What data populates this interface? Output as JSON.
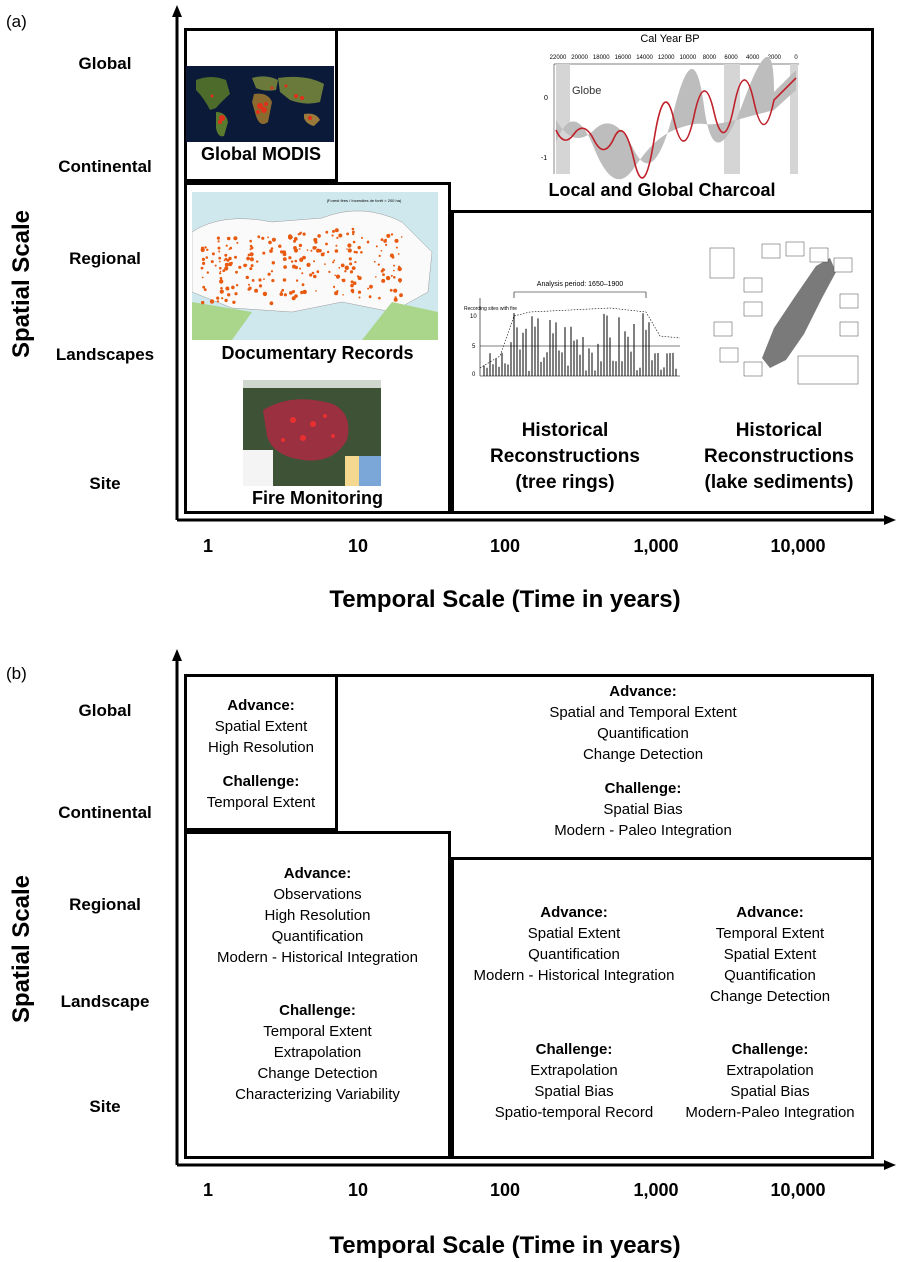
{
  "panel_a": {
    "label": "(a)",
    "y_axis_title": "Spatial Scale",
    "x_axis_title": "Temporal Scale  (Time in years)",
    "y_levels": [
      "Global",
      "Continental",
      "Regional",
      "Landscapes",
      "Site"
    ],
    "x_levels": [
      "1",
      "10",
      "100",
      "1,000",
      "10,000"
    ],
    "boxes": {
      "modis": "Global MODIS",
      "charcoal": "Local and Global Charcoal",
      "documentary": "Documentary Records",
      "monitoring": "Fire Monitoring",
      "tree_rings": [
        "Historical",
        "Reconstructions",
        "(tree rings)"
      ],
      "lake_sediments": [
        "Historical",
        "Reconstructions",
        "(lake sediments)"
      ]
    },
    "charcoal_chart": {
      "top_label": "Cal Year BP",
      "ticks": [
        "22000",
        "20000",
        "18000",
        "16000",
        "14000",
        "12000",
        "10000",
        "8000",
        "6000",
        "4000",
        "2000",
        "0"
      ],
      "y_ticks": [
        "0",
        "-1"
      ],
      "series": "Globe"
    },
    "tree_ring_chart": {
      "title": "Analysis period: 1650–1900",
      "ylabel": "Recording sites with fire",
      "y_ticks": [
        "10",
        "5",
        "0"
      ]
    },
    "doc_map_title": "(Forest fires / Incendies de forêt > 200 ha)"
  },
  "panel_b": {
    "label": "(b)",
    "y_axis_title": "Spatial Scale",
    "x_axis_title": "Temporal Scale  (Time in years)",
    "y_levels": [
      "Global",
      "Continental",
      "Regional",
      "Landscape",
      "Site"
    ],
    "x_levels": [
      "1",
      "10",
      "100",
      "1,000",
      "10,000"
    ],
    "box1": {
      "advance_label": "Advance:",
      "advance": [
        "Spatial Extent",
        "High Resolution"
      ],
      "challenge_label": "Challenge:",
      "challenge": [
        "Temporal Extent"
      ]
    },
    "box2": {
      "advance_label": "Advance:",
      "advance": [
        "Spatial and Temporal Extent",
        "Quantification",
        "Change Detection"
      ],
      "challenge_label": "Challenge:",
      "challenge": [
        "Spatial Bias",
        "Modern - Paleo Integration"
      ]
    },
    "box3": {
      "advance_label": "Advance:",
      "advance": [
        "Observations",
        "High Resolution",
        "Quantification",
        "Modern - Historical Integration"
      ],
      "challenge_label": "Challenge:",
      "challenge": [
        "Temporal Extent",
        "Extrapolation",
        "Change Detection",
        "Characterizing Variability"
      ]
    },
    "box4a": {
      "advance_label": "Advance:",
      "advance": [
        "Spatial Extent",
        "Quantification",
        "Modern - Historical Integration"
      ],
      "challenge_label": "Challenge:",
      "challenge": [
        "Extrapolation",
        "Spatial Bias",
        "Spatio-temporal Record"
      ]
    },
    "box4b": {
      "advance_label": "Advance:",
      "advance": [
        "Temporal Extent",
        "Spatial Extent",
        "Quantification",
        "Change Detection"
      ],
      "challenge_label": "Challenge:",
      "challenge": [
        "Extrapolation",
        "Spatial Bias",
        "Modern-Paleo Integration"
      ]
    }
  }
}
